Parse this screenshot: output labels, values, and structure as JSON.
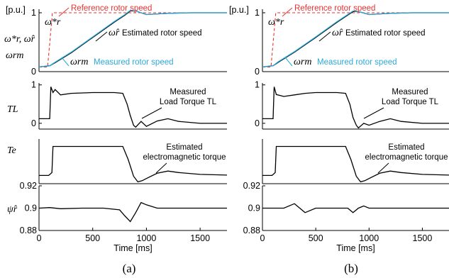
{
  "chart_data": [
    {
      "type": "line",
      "panel": "a",
      "caption": "(a)",
      "xlabel": "Time [ms]",
      "xlim": [
        0,
        1750
      ],
      "xticks": [
        "0",
        "500",
        "1000",
        "1500"
      ],
      "unit_label": "[p.u.]",
      "subplots": [
        {
          "id": "speed",
          "ylim": [
            0,
            1
          ],
          "yticks": [
            "0",
            "1"
          ],
          "annotations": [
            "Reference rotor speed",
            "Estimated rotor speed",
            "Measured rotor speed"
          ],
          "series": [
            {
              "name": "Reference rotor speed",
              "color": "#e8312f",
              "x": [
                0,
                80,
                125,
                200,
                210,
                1750
              ],
              "y": [
                0.08,
                0.08,
                1.0,
                1.0,
                1.0,
                1.0
              ]
            },
            {
              "name": "Estimated rotor speed",
              "color": "#000000",
              "x": [
                0,
                100,
                150,
                300,
                500,
                700,
                800,
                850,
                900,
                1000,
                1100,
                1200,
                1400,
                1750
              ],
              "y": [
                0.08,
                0.1,
                0.15,
                0.32,
                0.58,
                0.84,
                0.96,
                1.03,
                1.03,
                0.97,
                0.98,
                0.99,
                1.0,
                1.0
              ]
            },
            {
              "name": "Measured rotor speed",
              "color": "#29a9d8",
              "x": [
                0,
                100,
                150,
                300,
                500,
                700,
                800,
                850,
                900,
                1000,
                1100,
                1200,
                1400,
                1750
              ],
              "y": [
                0.08,
                0.1,
                0.16,
                0.33,
                0.59,
                0.85,
                0.97,
                1.04,
                1.03,
                0.97,
                0.98,
                0.99,
                1.0,
                1.0
              ]
            }
          ]
        },
        {
          "id": "load_torque",
          "ylabel_symbol": "TL",
          "ylim": [
            0,
            1
          ],
          "yticks": [
            "0",
            "1"
          ],
          "annotations": [
            "Measured",
            "Load Torque TL"
          ],
          "series": [
            {
              "name": "Measured Load Torque TL",
              "color": "#000000",
              "x": [
                0,
                100,
                110,
                130,
                150,
                200,
                300,
                500,
                700,
                780,
                820,
                850,
                880,
                900,
                950,
                1000,
                1100,
                1200,
                1300,
                1500,
                1750
              ],
              "y": [
                0.12,
                0.12,
                0.95,
                0.8,
                0.88,
                0.74,
                0.78,
                0.8,
                0.8,
                0.78,
                0.5,
                0.2,
                -0.05,
                -0.1,
                0.05,
                -0.08,
                0.06,
                0.12,
                0.05,
                0.0,
                0.0
              ]
            }
          ]
        },
        {
          "id": "em_torque",
          "ylabel_symbol": "Te",
          "ylim": [
            0,
            1
          ],
          "yticks": [],
          "annotations": [
            "Estimated",
            "electromagnetic torque"
          ],
          "series": [
            {
              "name": "Estimated electromagnetic torque",
              "color": "#000000",
              "x": [
                0,
                90,
                120,
                130,
                300,
                500,
                700,
                780,
                830,
                880,
                920,
                960,
                1000,
                1100,
                1200,
                1300,
                1500,
                1750
              ],
              "y": [
                0.12,
                0.12,
                0.2,
                0.9,
                0.9,
                0.9,
                0.9,
                0.9,
                0.55,
                0.1,
                -0.05,
                -0.02,
                0.04,
                0.18,
                0.24,
                0.2,
                0.15,
                0.13
              ]
            }
          ]
        },
        {
          "id": "flux",
          "ylabel_symbol": "ψr",
          "ylim": [
            0.88,
            0.92
          ],
          "yticks": [
            "0.88",
            "0.9",
            "0.92"
          ],
          "series": [
            {
              "name": "Estimated rotor flux",
              "color": "#000000",
              "x": [
                0,
                100,
                200,
                400,
                600,
                750,
                800,
                850,
                900,
                950,
                1000,
                1100,
                1300,
                1500,
                1750
              ],
              "y": [
                0.9,
                0.9005,
                0.8995,
                0.9,
                0.9,
                0.8985,
                0.893,
                0.888,
                0.896,
                0.905,
                0.903,
                0.9,
                0.9,
                0.9,
                0.9
              ]
            }
          ]
        }
      ]
    },
    {
      "type": "line",
      "panel": "b",
      "caption": "(b)",
      "xlabel": "Time [ms]",
      "xlim": [
        0,
        1750
      ],
      "xticks": [
        "0",
        "500",
        "1000",
        "1500"
      ],
      "unit_label": "[p.u.]",
      "subplots": [
        {
          "id": "speed",
          "ylim": [
            0,
            1
          ],
          "yticks": [
            "0",
            "1"
          ],
          "annotations": [
            "Reference rotor speed",
            "Estimated rotor speed",
            "Measured rotor speed"
          ],
          "series": [
            {
              "name": "Reference rotor speed",
              "color": "#e8312f",
              "x": [
                0,
                80,
                125,
                200,
                210,
                1750
              ],
              "y": [
                0.08,
                0.08,
                1.0,
                1.0,
                1.0,
                1.0
              ]
            },
            {
              "name": "Estimated rotor speed",
              "color": "#000000",
              "x": [
                0,
                100,
                150,
                300,
                500,
                700,
                800,
                850,
                900,
                1000,
                1100,
                1200,
                1400,
                1750
              ],
              "y": [
                0.08,
                0.1,
                0.16,
                0.33,
                0.58,
                0.84,
                0.96,
                1.02,
                1.02,
                0.97,
                0.98,
                0.99,
                1.0,
                1.0
              ]
            },
            {
              "name": "Measured rotor speed",
              "color": "#29a9d8",
              "x": [
                0,
                100,
                150,
                300,
                500,
                700,
                800,
                850,
                900,
                1000,
                1100,
                1200,
                1400,
                1750
              ],
              "y": [
                0.08,
                0.1,
                0.17,
                0.34,
                0.59,
                0.85,
                0.97,
                1.03,
                1.02,
                0.97,
                0.98,
                0.99,
                1.0,
                1.0
              ]
            }
          ]
        },
        {
          "id": "load_torque",
          "ylabel_symbol": "TL",
          "ylim": [
            0,
            1
          ],
          "yticks": [
            "0",
            "1"
          ],
          "annotations": [
            "Measured",
            "Load Torque TL"
          ],
          "series": [
            {
              "name": "Measured Load Torque TL",
              "color": "#000000",
              "x": [
                0,
                100,
                110,
                130,
                200,
                300,
                400,
                500,
                700,
                780,
                820,
                850,
                880,
                900,
                950,
                1000,
                1100,
                1200,
                1300,
                1500,
                1750
              ],
              "y": [
                0.12,
                0.12,
                0.95,
                0.75,
                0.7,
                0.74,
                0.78,
                0.8,
                0.8,
                0.78,
                0.5,
                0.15,
                -0.05,
                -0.12,
                0.0,
                -0.05,
                0.05,
                0.12,
                0.05,
                0.0,
                0.0
              ]
            }
          ]
        },
        {
          "id": "em_torque",
          "ylabel_symbol": "",
          "ylim": [
            0,
            1
          ],
          "yticks": [],
          "annotations": [
            "Estimated",
            "electromagnetic torque"
          ],
          "series": [
            {
              "name": "Estimated electromagnetic torque",
              "color": "#000000",
              "x": [
                0,
                90,
                120,
                130,
                300,
                500,
                700,
                780,
                830,
                880,
                920,
                960,
                1000,
                1100,
                1200,
                1300,
                1500,
                1750
              ],
              "y": [
                0.12,
                0.12,
                0.2,
                0.9,
                0.9,
                0.9,
                0.9,
                0.9,
                0.55,
                0.1,
                -0.05,
                -0.02,
                0.04,
                0.18,
                0.24,
                0.2,
                0.15,
                0.13
              ]
            }
          ]
        },
        {
          "id": "flux",
          "ylabel_symbol": "",
          "ylim": [
            0.88,
            0.92
          ],
          "yticks": [
            "0.88",
            "0.9",
            "0.92"
          ],
          "series": [
            {
              "name": "Estimated rotor flux",
              "color": "#000000",
              "x": [
                0,
                100,
                200,
                300,
                400,
                500,
                700,
                800,
                850,
                900,
                950,
                1000,
                1100,
                1300,
                1500,
                1750
              ],
              "y": [
                0.9,
                0.9,
                0.9,
                0.904,
                0.896,
                0.9,
                0.9,
                0.9,
                0.896,
                0.9,
                0.902,
                0.9,
                0.9,
                0.9,
                0.9,
                0.9
              ]
            }
          ]
        }
      ]
    }
  ],
  "ylabels": {
    "speed_line1": "ω*r, ω̂r",
    "speed_line2": "ωrm",
    "load_torque": "TL",
    "em_torque": "Te",
    "flux": "ψ̂r"
  },
  "legend_symbols": {
    "reference": "ω*r",
    "estimated": "ω̂r",
    "measured": "ωrm"
  }
}
